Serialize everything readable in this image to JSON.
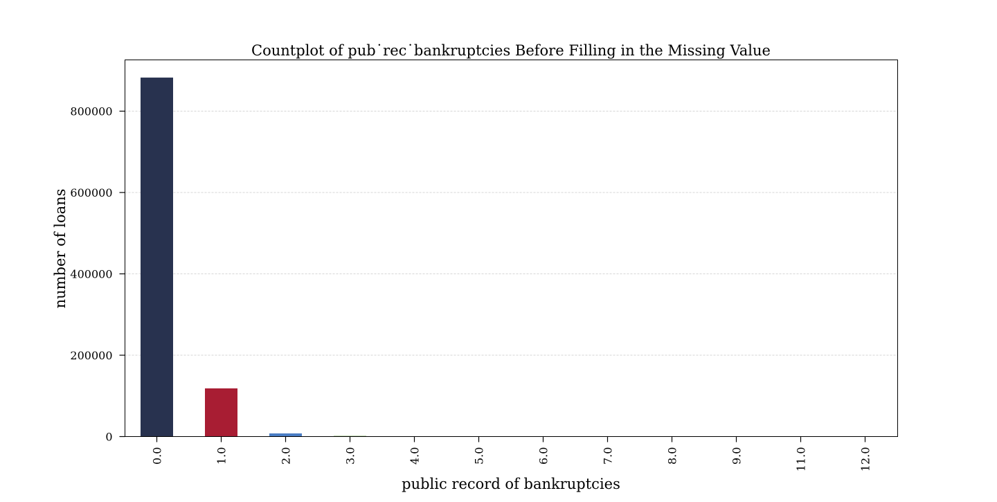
{
  "chart_data": {
    "type": "bar",
    "title": "Countplot of pub˙rec˙bankruptcies Before Filling in the Missing Value",
    "xlabel": "public record of bankruptcies",
    "ylabel": "number of loans",
    "categories": [
      "0.0",
      "1.0",
      "2.0",
      "3.0",
      "4.0",
      "5.0",
      "6.0",
      "7.0",
      "8.0",
      "9.0",
      "11.0",
      "12.0"
    ],
    "values": [
      882500,
      118500,
      7800,
      1550,
      360,
      120,
      45,
      18,
      8,
      3,
      1,
      1
    ],
    "bar_colors": [
      "#28324f",
      "#a81d33",
      "#4a7dc4",
      "#5f9a3c",
      "#28324f",
      "#a81d33",
      "#4a7dc4",
      "#5f9a3c",
      "#28324f",
      "#a81d33",
      "#4a7dc4",
      "#5f9a3c"
    ],
    "yticks": [
      0,
      200000,
      400000,
      600000,
      800000
    ],
    "ylim": [
      0,
      926000
    ],
    "grid": "y-dashed",
    "legend": "none",
    "x_tick_rotation": "vertical"
  }
}
